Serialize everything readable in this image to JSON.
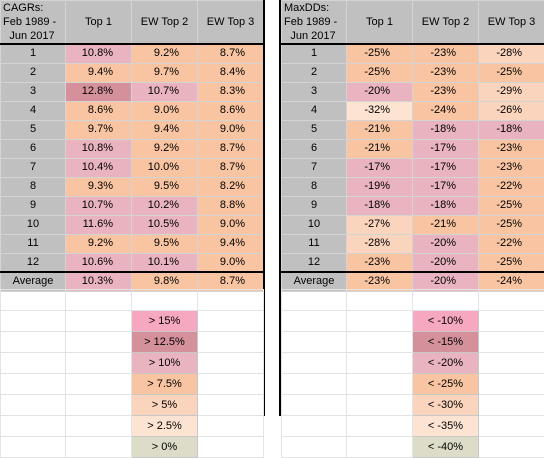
{
  "cagr": {
    "header": [
      "CAGRs:",
      "Feb 1989  -",
      "Jun 2017"
    ],
    "columns": [
      "Top 1",
      "EW Top 2",
      "EW Top 3"
    ],
    "rows": [
      {
        "label": "1",
        "v": [
          "10.8%",
          "9.2%",
          "8.7%"
        ]
      },
      {
        "label": "2",
        "v": [
          "9.4%",
          "9.7%",
          "8.4%"
        ]
      },
      {
        "label": "3",
        "v": [
          "12.8%",
          "10.7%",
          "8.3%"
        ]
      },
      {
        "label": "4",
        "v": [
          "8.6%",
          "9.0%",
          "8.6%"
        ]
      },
      {
        "label": "5",
        "v": [
          "9.7%",
          "9.4%",
          "9.0%"
        ]
      },
      {
        "label": "6",
        "v": [
          "10.8%",
          "9.2%",
          "8.7%"
        ]
      },
      {
        "label": "7",
        "v": [
          "10.4%",
          "10.0%",
          "8.7%"
        ]
      },
      {
        "label": "8",
        "v": [
          "9.3%",
          "9.5%",
          "8.2%"
        ]
      },
      {
        "label": "9",
        "v": [
          "10.7%",
          "10.2%",
          "8.8%"
        ]
      },
      {
        "label": "10",
        "v": [
          "11.6%",
          "10.5%",
          "9.0%"
        ]
      },
      {
        "label": "11",
        "v": [
          "9.2%",
          "9.5%",
          "9.4%"
        ]
      },
      {
        "label": "12",
        "v": [
          "10.6%",
          "10.1%",
          "9.0%"
        ]
      }
    ],
    "average": {
      "label": "Average",
      "v": [
        "10.3%",
        "9.8%",
        "8.7%"
      ]
    },
    "legend": [
      "> 15%",
      "> 12.5%",
      "> 10%",
      "> 7.5%",
      "> 5%",
      "> 2.5%",
      "> 0%"
    ]
  },
  "maxdd": {
    "header": [
      "MaxDDs:",
      "Feb 1989  -",
      "Jun 2017"
    ],
    "columns": [
      "Top 1",
      "EW Top 2",
      "EW Top 3"
    ],
    "rows": [
      {
        "label": "1",
        "v": [
          "-25%",
          "-23%",
          "-28%"
        ]
      },
      {
        "label": "2",
        "v": [
          "-25%",
          "-23%",
          "-25%"
        ]
      },
      {
        "label": "3",
        "v": [
          "-20%",
          "-23%",
          "-29%"
        ]
      },
      {
        "label": "4",
        "v": [
          "-32%",
          "-24%",
          "-26%"
        ]
      },
      {
        "label": "5",
        "v": [
          "-21%",
          "-18%",
          "-18%"
        ]
      },
      {
        "label": "6",
        "v": [
          "-21%",
          "-17%",
          "-23%"
        ]
      },
      {
        "label": "7",
        "v": [
          "-17%",
          "-17%",
          "-23%"
        ]
      },
      {
        "label": "8",
        "v": [
          "-19%",
          "-17%",
          "-22%"
        ]
      },
      {
        "label": "9",
        "v": [
          "-18%",
          "-18%",
          "-25%"
        ]
      },
      {
        "label": "10",
        "v": [
          "-27%",
          "-21%",
          "-25%"
        ]
      },
      {
        "label": "11",
        "v": [
          "-28%",
          "-20%",
          "-22%"
        ]
      },
      {
        "label": "12",
        "v": [
          "-23%",
          "-20%",
          "-25%"
        ]
      }
    ],
    "average": {
      "label": "Average",
      "v": [
        "-23%",
        "-20%",
        "-24%"
      ]
    },
    "legend": [
      "< -10%",
      "< -15%",
      "< -20%",
      "< -25%",
      "< -30%",
      "< -35%",
      "< -40%"
    ]
  },
  "colors": {
    "legend_cagr": [
      "#f6a8c0",
      "#d4919b",
      "#e9b4bf",
      "#f8c4a1",
      "#fbd4bd",
      "#fde3d2",
      "#dcdcc8"
    ],
    "legend_dd": [
      "#f6a8c0",
      "#d4919b",
      "#e9b4bf",
      "#f8c4a1",
      "#fbd4bd",
      "#fde3d2",
      "#dcdcc8"
    ],
    "header_gray": "#c0c0c0"
  }
}
